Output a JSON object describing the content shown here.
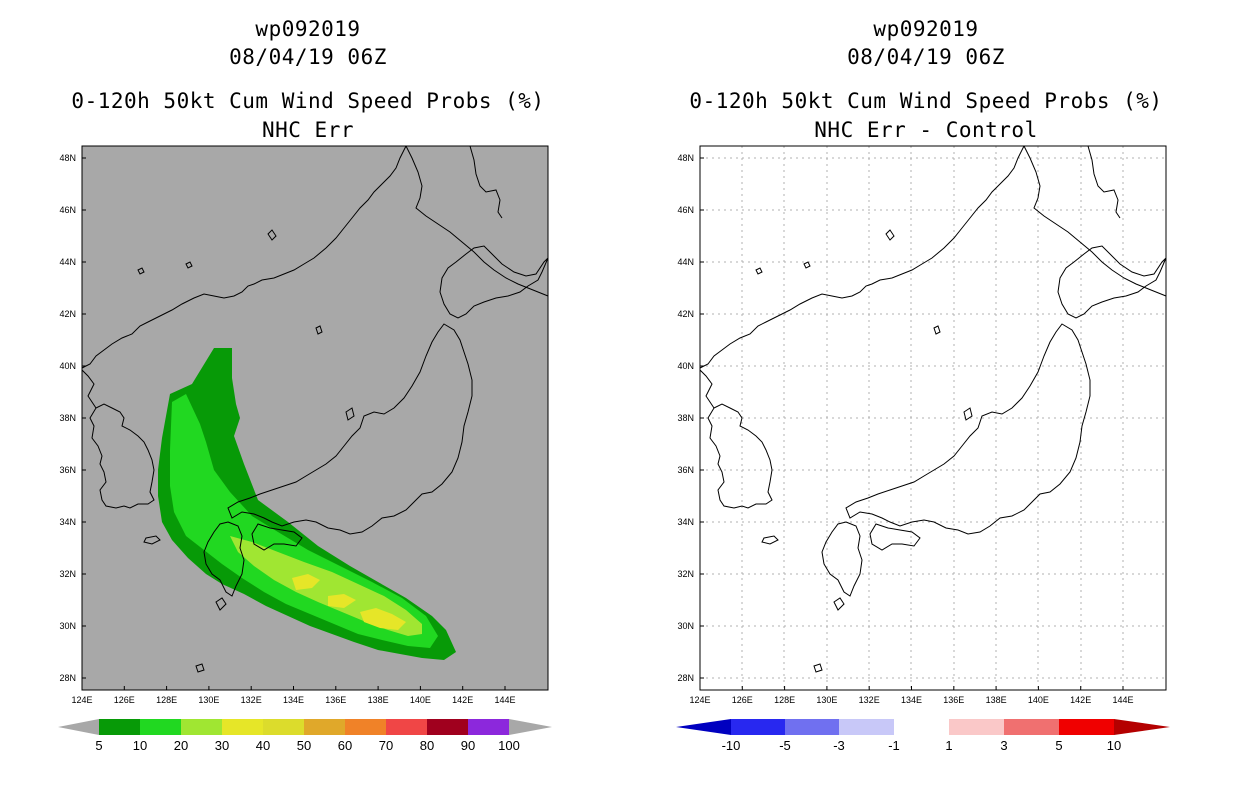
{
  "colors": {
    "ocean_grey": "#a8a8a8",
    "coast": "#000000",
    "prob_colors": [
      "#079a07",
      "#21d821",
      "#a0e632",
      "#e6e628",
      "#dcdc2c",
      "#e0a82a",
      "#f08228",
      "#f04646",
      "#a0001e",
      "#8c28dc"
    ],
    "diff_colors": [
      "#0000c0",
      "#2828f0",
      "#7070f0",
      "#c8c8f8",
      "#ffffff",
      "#fac8c8",
      "#f07070",
      "#f00000",
      "#b40000"
    ]
  },
  "left_panel": {
    "title_line1": "wp092019",
    "title_line2": "08/04/19 06Z",
    "title_line3": "0-120h 50kt Cum Wind Speed Probs (%)",
    "title_line4": "NHC Err",
    "colorbar_labels": [
      "5",
      "10",
      "20",
      "30",
      "40",
      "50",
      "60",
      "70",
      "80",
      "90",
      "100"
    ]
  },
  "right_panel": {
    "title_line1": "wp092019",
    "title_line2": "08/04/19 06Z",
    "title_line3": "0-120h 50kt Cum Wind Speed Probs (%)",
    "title_line4": "NHC Err - Control",
    "colorbar_labels": [
      "-10",
      "-5",
      "-3",
      "-1",
      "1",
      "3",
      "5",
      "10"
    ]
  },
  "map": {
    "lat_labels": [
      "48N",
      "46N",
      "44N",
      "42N",
      "40N",
      "38N",
      "36N",
      "34N",
      "32N",
      "30N",
      "28N"
    ],
    "lon_labels": [
      "124E",
      "126E",
      "128E",
      "130E",
      "132E",
      "134E",
      "136E",
      "138E",
      "140E",
      "142E",
      "144E"
    ]
  }
}
